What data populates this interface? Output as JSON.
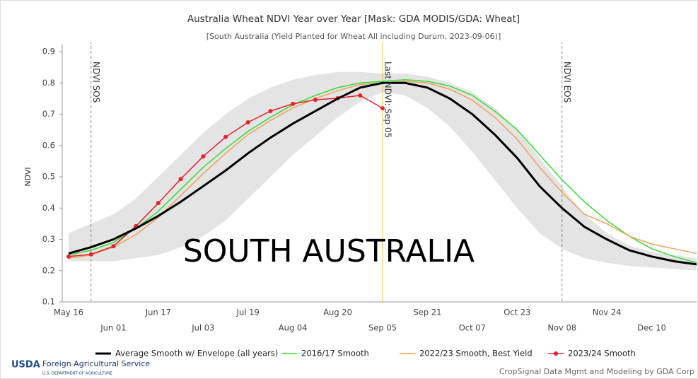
{
  "chart_data": {
    "type": "line",
    "title": "Australia Wheat NDVI Year over Year [Mask: GDA MODIS/GDA: Wheat]",
    "subtitle": "[South Australia (Yield Planted for Wheat All including Durum, 2023-09-06)]",
    "y_label": "NDVI",
    "overlay_text": "SOUTH AUSTRALIA",
    "categories": [
      "May 16",
      null,
      "Jun 01",
      null,
      "Jun 17",
      null,
      "Jul 03",
      null,
      "Jul 19",
      null,
      "Aug 04",
      null,
      "Aug 20",
      null,
      "Sep 05",
      null,
      "Sep 21",
      null,
      "Oct 07",
      null,
      "Oct 23",
      null,
      "Nov 08",
      null,
      "Nov 24",
      null,
      "Dec 10",
      null,
      null
    ],
    "ylim": [
      0.1,
      0.9
    ],
    "yticks": [
      0.1,
      0.2,
      0.3,
      0.4,
      0.5,
      0.6,
      0.7,
      0.8,
      0.9
    ],
    "series": [
      {
        "name": "Average Smooth w/ Envelope (all years)",
        "color": "#000000",
        "values": [
          0.255,
          0.275,
          0.3,
          0.335,
          0.375,
          0.42,
          0.47,
          0.52,
          0.575,
          0.625,
          0.67,
          0.71,
          0.75,
          0.785,
          0.8,
          0.8,
          0.785,
          0.75,
          0.7,
          0.635,
          0.56,
          0.47,
          0.4,
          0.34,
          0.3,
          0.265,
          0.245,
          0.23,
          0.22
        ],
        "upper": [
          0.32,
          0.35,
          0.38,
          0.43,
          0.5,
          0.57,
          0.64,
          0.7,
          0.75,
          0.785,
          0.81,
          0.825,
          0.835,
          0.835,
          0.83,
          0.83,
          0.82,
          0.8,
          0.77,
          0.72,
          0.65,
          0.56,
          0.47,
          0.38,
          0.32,
          0.28,
          0.26,
          0.25,
          0.24
        ],
        "lower": [
          0.23,
          0.23,
          0.23,
          0.24,
          0.25,
          0.275,
          0.31,
          0.36,
          0.43,
          0.5,
          0.57,
          0.63,
          0.69,
          0.74,
          0.77,
          0.76,
          0.72,
          0.66,
          0.58,
          0.49,
          0.4,
          0.32,
          0.27,
          0.24,
          0.225,
          0.215,
          0.21,
          0.205,
          0.2
        ]
      },
      {
        "name": "2016/17 Smooth",
        "color": "#33dd33",
        "values": [
          0.25,
          0.265,
          0.29,
          0.335,
          0.39,
          0.46,
          0.53,
          0.59,
          0.645,
          0.69,
          0.73,
          0.76,
          0.785,
          0.8,
          0.805,
          0.81,
          0.805,
          0.79,
          0.76,
          0.71,
          0.65,
          0.57,
          0.49,
          0.42,
          0.36,
          0.31,
          0.27,
          0.245,
          0.225
        ]
      },
      {
        "name": "2022/23 Smooth, Best Yield",
        "color": "#f0a060",
        "values": [
          0.24,
          0.25,
          0.275,
          0.315,
          0.37,
          0.44,
          0.51,
          0.575,
          0.635,
          0.68,
          0.72,
          0.75,
          0.775,
          0.795,
          0.8,
          0.805,
          0.8,
          0.78,
          0.745,
          0.69,
          0.62,
          0.53,
          0.45,
          0.38,
          0.35,
          0.31,
          0.285,
          0.27,
          0.255
        ]
      },
      {
        "name": "2023/24 Smooth",
        "color": "#e8202a",
        "markers": true,
        "values": [
          0.245,
          0.252,
          0.278,
          0.342,
          0.416,
          0.493,
          0.565,
          0.627,
          0.674,
          0.71,
          0.733,
          0.746,
          0.751,
          0.76,
          0.719,
          null,
          null,
          null,
          null,
          null,
          null,
          null,
          null,
          null,
          null,
          null,
          null,
          null,
          null
        ]
      }
    ],
    "vlines": [
      {
        "text": "NDVI SOS",
        "x": 1,
        "color": "#888888"
      },
      {
        "text": "Last NDVI: Sep 05",
        "x": 14,
        "color": "#e8c840"
      },
      {
        "text": "NDVI EOS",
        "x": 22,
        "color": "#888888"
      }
    ],
    "footer": {
      "logo": "USDA",
      "agency": "Foreign Agricultural Service",
      "department": "U.S. DEPARTMENT OF AGRICULTURE",
      "credit": "CropSignal Data Mgmt and Modeling by GDA Corp"
    }
  }
}
